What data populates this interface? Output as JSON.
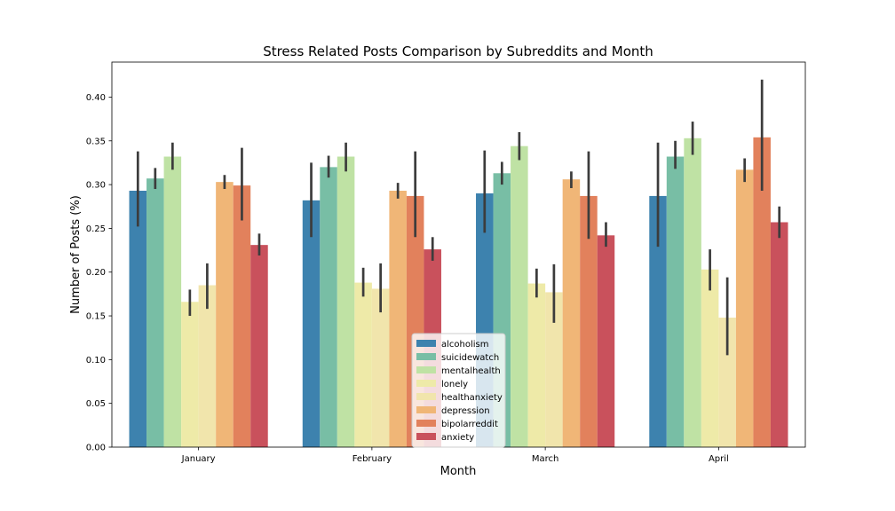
{
  "chart_data": {
    "type": "bar",
    "title": "Stress Related Posts Comparison by Subreddits and Month",
    "xlabel": "Month",
    "ylabel": "Number of Posts (%)",
    "categories": [
      "January",
      "February",
      "March",
      "April"
    ],
    "ylim": [
      0,
      0.44
    ],
    "yticks": [
      "0.00",
      "0.05",
      "0.10",
      "0.15",
      "0.20",
      "0.25",
      "0.30",
      "0.35",
      "0.40"
    ],
    "grid": false,
    "legend_position": "lower-center",
    "series": [
      {
        "name": "alcoholism",
        "color": "#3d82ae",
        "values": [
          0.293,
          0.282,
          0.29,
          0.287
        ],
        "err_low": [
          0.252,
          0.24,
          0.245,
          0.229
        ],
        "err_high": [
          0.338,
          0.325,
          0.339,
          0.348
        ]
      },
      {
        "name": "suicidewatch",
        "color": "#78bea5",
        "values": [
          0.307,
          0.32,
          0.313,
          0.332
        ],
        "err_low": [
          0.295,
          0.308,
          0.3,
          0.318
        ],
        "err_high": [
          0.319,
          0.333,
          0.326,
          0.35
        ]
      },
      {
        "name": "mentalhealth",
        "color": "#bfe2a4",
        "values": [
          0.332,
          0.332,
          0.344,
          0.353
        ],
        "err_low": [
          0.317,
          0.315,
          0.328,
          0.334
        ],
        "err_high": [
          0.348,
          0.348,
          0.36,
          0.372
        ]
      },
      {
        "name": "lonely",
        "color": "#eeeaa8",
        "values": [
          0.166,
          0.188,
          0.187,
          0.203
        ],
        "err_low": [
          0.15,
          0.172,
          0.171,
          0.179
        ],
        "err_high": [
          0.18,
          0.205,
          0.204,
          0.226
        ]
      },
      {
        "name": "healthanxiety",
        "color": "#f1e5ac",
        "values": [
          0.185,
          0.181,
          0.177,
          0.148
        ],
        "err_low": [
          0.158,
          0.154,
          0.142,
          0.105
        ],
        "err_high": [
          0.21,
          0.21,
          0.209,
          0.194
        ]
      },
      {
        "name": "depression",
        "color": "#f0b677",
        "values": [
          0.303,
          0.293,
          0.306,
          0.317
        ],
        "err_low": [
          0.295,
          0.284,
          0.296,
          0.303
        ],
        "err_high": [
          0.311,
          0.302,
          0.315,
          0.33
        ]
      },
      {
        "name": "bipolarreddit",
        "color": "#e2815c",
        "values": [
          0.299,
          0.287,
          0.287,
          0.354
        ],
        "err_low": [
          0.259,
          0.24,
          0.238,
          0.293
        ],
        "err_high": [
          0.342,
          0.338,
          0.338,
          0.42
        ]
      },
      {
        "name": "anxiety",
        "color": "#c9515c",
        "values": [
          0.231,
          0.226,
          0.242,
          0.257
        ],
        "err_low": [
          0.219,
          0.213,
          0.229,
          0.239
        ],
        "err_high": [
          0.244,
          0.24,
          0.257,
          0.275
        ]
      }
    ]
  }
}
